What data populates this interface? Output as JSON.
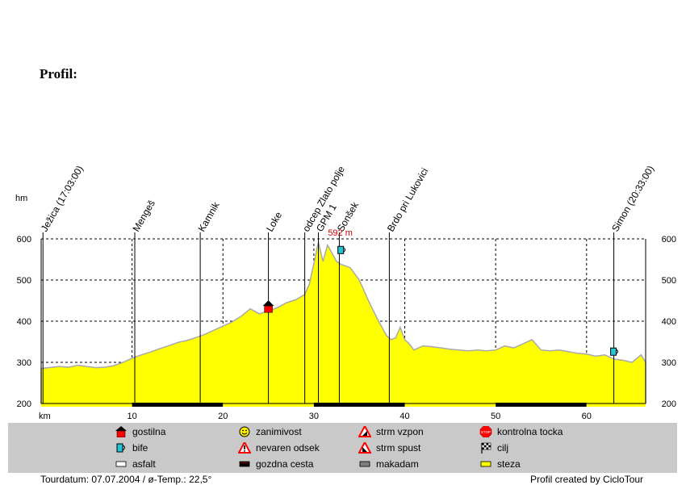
{
  "title": "Profil:",
  "chart_data": {
    "type": "area",
    "xlabel": "km",
    "ylabel": "hm",
    "xlim": [
      0,
      66.5
    ],
    "ylim": [
      200,
      600
    ],
    "x_ticks": [
      10,
      20,
      30,
      40,
      50,
      60
    ],
    "y_ticks": [
      200,
      300,
      400,
      500,
      600
    ],
    "grid": true,
    "fill_color": "#ffff00",
    "line_color": "#a9a9a9",
    "profile": {
      "x": [
        0,
        2,
        3,
        4,
        5,
        6,
        7,
        8,
        9,
        10,
        11,
        12,
        13,
        14,
        15,
        16,
        17,
        18,
        19,
        20,
        21,
        22,
        23,
        24,
        25,
        26,
        27,
        28,
        29,
        29.5,
        30,
        30.5,
        31,
        31.5,
        32,
        32.5,
        33,
        34,
        35,
        36,
        37,
        38,
        38.5,
        39,
        39.5,
        40,
        40.5,
        41,
        42,
        43,
        44,
        45,
        46,
        47,
        48,
        49,
        50,
        51,
        52,
        53,
        54,
        55,
        56,
        57,
        58,
        59,
        60,
        61,
        62,
        63,
        64,
        65,
        66,
        66.5
      ],
      "y": [
        285,
        290,
        288,
        293,
        290,
        287,
        288,
        292,
        300,
        310,
        318,
        325,
        333,
        340,
        348,
        353,
        360,
        368,
        378,
        388,
        398,
        412,
        430,
        418,
        425,
        433,
        445,
        452,
        465,
        490,
        540,
        592,
        545,
        585,
        565,
        545,
        538,
        530,
        500,
        450,
        405,
        365,
        355,
        360,
        385,
        355,
        345,
        330,
        340,
        338,
        335,
        332,
        330,
        328,
        330,
        328,
        330,
        340,
        335,
        345,
        355,
        330,
        328,
        330,
        326,
        322,
        320,
        315,
        318,
        308,
        305,
        300,
        318,
        300
      ]
    },
    "segments": [
      {
        "from": 0,
        "to": 10,
        "type": "steza"
      },
      {
        "from": 10,
        "to": 20,
        "type": "gozdna cesta"
      },
      {
        "from": 20,
        "to": 30,
        "type": "steza"
      },
      {
        "from": 30,
        "to": 40,
        "type": "gozdna cesta"
      },
      {
        "from": 40,
        "to": 50,
        "type": "steza"
      },
      {
        "from": 50,
        "to": 60,
        "type": "gozdna cesta"
      },
      {
        "from": 60,
        "to": 66.5,
        "type": "steza"
      }
    ],
    "waypoints": [
      {
        "label": "Ježica (17:03:00)",
        "x": 0.2
      },
      {
        "label": "Mengeš",
        "x": 10.3
      },
      {
        "label": "Kamnik",
        "x": 17.5
      },
      {
        "label": "Loke",
        "x": 25
      },
      {
        "label": "odcep Zlato polje",
        "x": 29
      },
      {
        "label": "GPM 1",
        "x": 30.5
      },
      {
        "label": "Sonšek",
        "x": 32.8
      },
      {
        "label": "Brdo pri Lukovici",
        "x": 38.3
      },
      {
        "label": "Simon (20:33:00)",
        "x": 63
      }
    ],
    "max_label": {
      "text": "592 m",
      "x": 33.5,
      "y": 592
    },
    "markers": [
      {
        "type": "gostilna",
        "x": 25,
        "y": 433
      },
      {
        "type": "bife",
        "x": 33,
        "y": 572
      },
      {
        "type": "bife",
        "x": 63,
        "y": 325
      }
    ]
  },
  "legend": {
    "items": [
      {
        "icon": "gostilna-icon",
        "label": "gostilna"
      },
      {
        "icon": "zanimivost-icon",
        "label": "zanimivost"
      },
      {
        "icon": "strm-vzpon-icon",
        "label": "strm vzpon"
      },
      {
        "icon": "kontrolna-tocka-icon",
        "label": "kontrolna tocka"
      },
      {
        "icon": "bife-icon",
        "label": "bife"
      },
      {
        "icon": "nevaren-odsek-icon",
        "label": "nevaren odsek"
      },
      {
        "icon": "strm-spust-icon",
        "label": "strm spust"
      },
      {
        "icon": "cilj-icon",
        "label": "cilj"
      },
      {
        "icon": "asfalt-icon",
        "label": "asfalt"
      },
      {
        "icon": "gozdna-cesta-icon",
        "label": "gozdna cesta"
      },
      {
        "icon": "makadam-icon",
        "label": "makadam"
      },
      {
        "icon": "steza-icon",
        "label": "steza"
      }
    ],
    "stop_text": "STOP",
    "colors": {
      "asfalt": "#ffffff",
      "gozdna_cesta": "#000000",
      "makadam": "#808080",
      "steza": "#ffff00"
    }
  },
  "footer": {
    "left": "Tourdatum: 07.07.2004  /  ø-Temp.: 22,5°",
    "right": "Profil created by CicloTour"
  }
}
